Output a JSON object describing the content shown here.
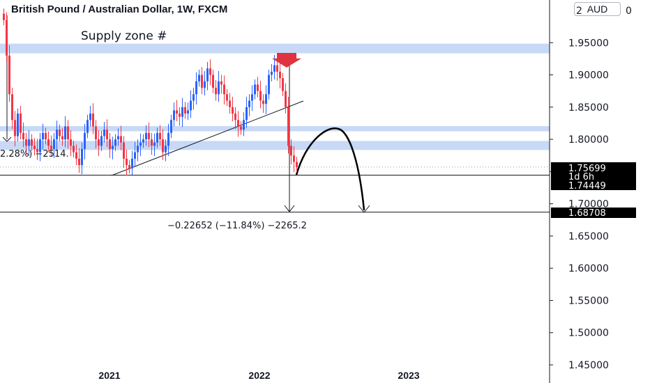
{
  "header": {
    "title": "British Pound / Australian Dollar, 1W, FXCM",
    "currency": "AUD",
    "axis_top_partial": "2"
  },
  "annotations": {
    "supply_zone": "Supply zone #",
    "left_measure_partial": "2.28%) −2514.",
    "measure_text": "−0.22652 (−11.84%) −2265.2"
  },
  "price_tags": {
    "current_price": "1.75699",
    "countdown": "1d 6h",
    "support_level": "1.74449",
    "target_level": "1.68708"
  },
  "colors": {
    "up": "#2962ff",
    "down": "#f23645",
    "zone": "#c8d9f7",
    "arrow": "#e0323f",
    "tag_bg": "#000000"
  },
  "chart_data": {
    "type": "candlestick",
    "title": "British Pound / Australian Dollar, 1W, FXCM",
    "ylim": [
      1.45,
      2.0
    ],
    "y_ticks": [
      "1.95000",
      "1.90000",
      "1.85000",
      "1.80000",
      "1.75000",
      "1.70000",
      "1.65000",
      "1.60000",
      "1.55000",
      "1.50000",
      "1.45000"
    ],
    "y_tick_values": [
      1.95,
      1.9,
      1.85,
      1.8,
      1.75,
      1.7,
      1.65,
      1.6,
      1.55,
      1.5,
      1.45
    ],
    "x_ticks": [
      "2021",
      "2022",
      "2023"
    ],
    "grid": false,
    "zones": [
      {
        "low": 1.9335,
        "high": 1.9485
      },
      {
        "low": 1.8125,
        "high": 1.8205
      },
      {
        "low": 1.7835,
        "high": 1.7975
      }
    ],
    "levels": {
      "current": 1.75699,
      "support": 1.74449,
      "target": 1.68708
    },
    "closes": [
      1.985,
      1.93,
      1.87,
      1.83,
      1.805,
      1.84,
      1.81,
      1.8,
      1.79,
      1.8,
      1.79,
      1.785,
      1.78,
      1.8,
      1.81,
      1.8,
      1.79,
      1.785,
      1.8,
      1.815,
      1.805,
      1.8,
      1.82,
      1.8,
      1.79,
      1.78,
      1.77,
      1.76,
      1.785,
      1.81,
      1.83,
      1.84,
      1.82,
      1.8,
      1.79,
      1.805,
      1.815,
      1.8,
      1.785,
      1.79,
      1.8,
      1.805,
      1.795,
      1.77,
      1.76,
      1.755,
      1.77,
      1.78,
      1.79,
      1.795,
      1.8,
      1.81,
      1.8,
      1.79,
      1.795,
      1.81,
      1.8,
      1.78,
      1.79,
      1.81,
      1.83,
      1.845,
      1.84,
      1.835,
      1.85,
      1.84,
      1.845,
      1.86,
      1.87,
      1.89,
      1.9,
      1.88,
      1.89,
      1.91,
      1.9,
      1.88,
      1.87,
      1.89,
      1.885,
      1.87,
      1.86,
      1.85,
      1.84,
      1.83,
      1.82,
      1.815,
      1.83,
      1.85,
      1.86,
      1.87,
      1.885,
      1.875,
      1.86,
      1.855,
      1.87,
      1.9,
      1.905,
      1.915,
      1.905,
      1.895,
      1.875,
      1.85,
      1.79,
      1.775,
      1.765,
      1.757
    ]
  }
}
